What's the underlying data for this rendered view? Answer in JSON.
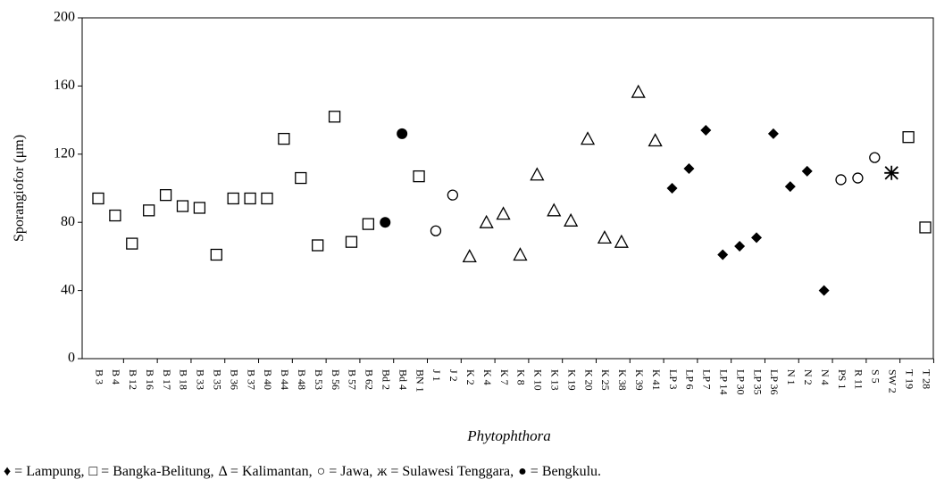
{
  "chart_data": {
    "type": "scatter",
    "y_label": "Sporangiofor (μm)",
    "x_label": "Phytophthora",
    "categories": [
      "B 3",
      "B 4",
      "B 12",
      "B 16",
      "B 17",
      "B 18",
      "B 33",
      "B 35",
      "B 36",
      "B 37",
      "B 40",
      "B 44",
      "B 48",
      "B 53",
      "B 56",
      "B 57",
      "B 62",
      "Bd 2",
      "Bd 4",
      "BN 1",
      "J 1",
      "J 2",
      "K 2",
      "K 4",
      "K 7",
      "K 8",
      "K 10",
      "K 13",
      "K 19",
      "K 20",
      "K 25",
      "K 38",
      "K 39",
      "K 41",
      "LP 3",
      "LP 6",
      "LP 7",
      "LP 14",
      "LP 30",
      "LP 35",
      "LP 36",
      "N 1",
      "N 2",
      "N 4",
      "PS 1",
      "R 11",
      "S 5",
      "SW 2",
      "T 19",
      "T 28"
    ],
    "ylim": [
      0,
      200
    ],
    "yticks": [
      0,
      40,
      80,
      120,
      160,
      200
    ],
    "series": [
      {
        "name": "♦ = Lampung,",
        "marker": "diamond",
        "color": "#000000",
        "values": [
          null,
          null,
          null,
          null,
          null,
          null,
          null,
          null,
          null,
          null,
          null,
          null,
          null,
          null,
          null,
          null,
          null,
          null,
          null,
          null,
          null,
          null,
          null,
          null,
          null,
          null,
          null,
          null,
          null,
          null,
          null,
          null,
          null,
          null,
          100,
          111.5,
          134,
          61,
          66,
          71,
          132,
          101,
          110,
          40,
          null,
          null,
          null,
          null,
          null,
          null
        ]
      },
      {
        "name": "□ = Bangka-Belitung,",
        "marker": "square",
        "color": "#000000",
        "values": [
          94,
          84,
          67.5,
          87,
          96,
          89.5,
          88.5,
          61,
          94,
          94,
          94,
          129,
          106,
          66.5,
          142,
          68.5,
          79,
          null,
          null,
          107,
          null,
          null,
          null,
          null,
          null,
          null,
          null,
          null,
          null,
          null,
          null,
          null,
          null,
          null,
          null,
          null,
          null,
          null,
          null,
          null,
          null,
          null,
          null,
          null,
          null,
          null,
          null,
          null,
          130,
          77
        ]
      },
      {
        "name": "Δ = Kalimantan,",
        "marker": "triangle",
        "color": "#000000",
        "values": [
          null,
          null,
          null,
          null,
          null,
          null,
          null,
          null,
          null,
          null,
          null,
          null,
          null,
          null,
          null,
          null,
          null,
          null,
          null,
          null,
          null,
          null,
          60,
          80,
          85,
          61,
          108,
          87,
          81,
          129,
          71,
          68.5,
          156.5,
          128,
          null,
          null,
          null,
          null,
          null,
          null,
          null,
          null,
          null,
          null,
          null,
          null,
          null,
          null,
          null,
          null
        ]
      },
      {
        "name": "○ = Jawa,",
        "marker": "circle",
        "color": "#000000",
        "values": [
          null,
          null,
          null,
          null,
          null,
          null,
          null,
          null,
          null,
          null,
          null,
          null,
          null,
          null,
          null,
          null,
          null,
          null,
          null,
          null,
          75,
          96,
          null,
          null,
          null,
          null,
          null,
          null,
          null,
          null,
          null,
          null,
          null,
          null,
          null,
          null,
          null,
          null,
          null,
          null,
          null,
          null,
          null,
          null,
          105,
          106,
          118,
          null,
          null,
          null
        ]
      },
      {
        "name": "ж = Sulawesi Tenggara,",
        "marker": "star",
        "color": "#000000",
        "values": [
          null,
          null,
          null,
          null,
          null,
          null,
          null,
          null,
          null,
          null,
          null,
          null,
          null,
          null,
          null,
          null,
          null,
          null,
          null,
          null,
          null,
          null,
          null,
          null,
          null,
          null,
          null,
          null,
          null,
          null,
          null,
          null,
          null,
          null,
          null,
          null,
          null,
          null,
          null,
          null,
          null,
          null,
          null,
          null,
          null,
          null,
          null,
          109,
          null,
          null
        ]
      },
      {
        "name": "● = Bengkulu.",
        "marker": "dot",
        "color": "#000000",
        "values": [
          null,
          null,
          null,
          null,
          null,
          null,
          null,
          null,
          null,
          null,
          null,
          null,
          null,
          null,
          null,
          null,
          null,
          80,
          132,
          null,
          null,
          null,
          null,
          null,
          null,
          null,
          null,
          null,
          null,
          null,
          null,
          null,
          null,
          null,
          null,
          null,
          null,
          null,
          null,
          null,
          null,
          null,
          null,
          null,
          null,
          null,
          null,
          null,
          null,
          null
        ]
      }
    ]
  }
}
